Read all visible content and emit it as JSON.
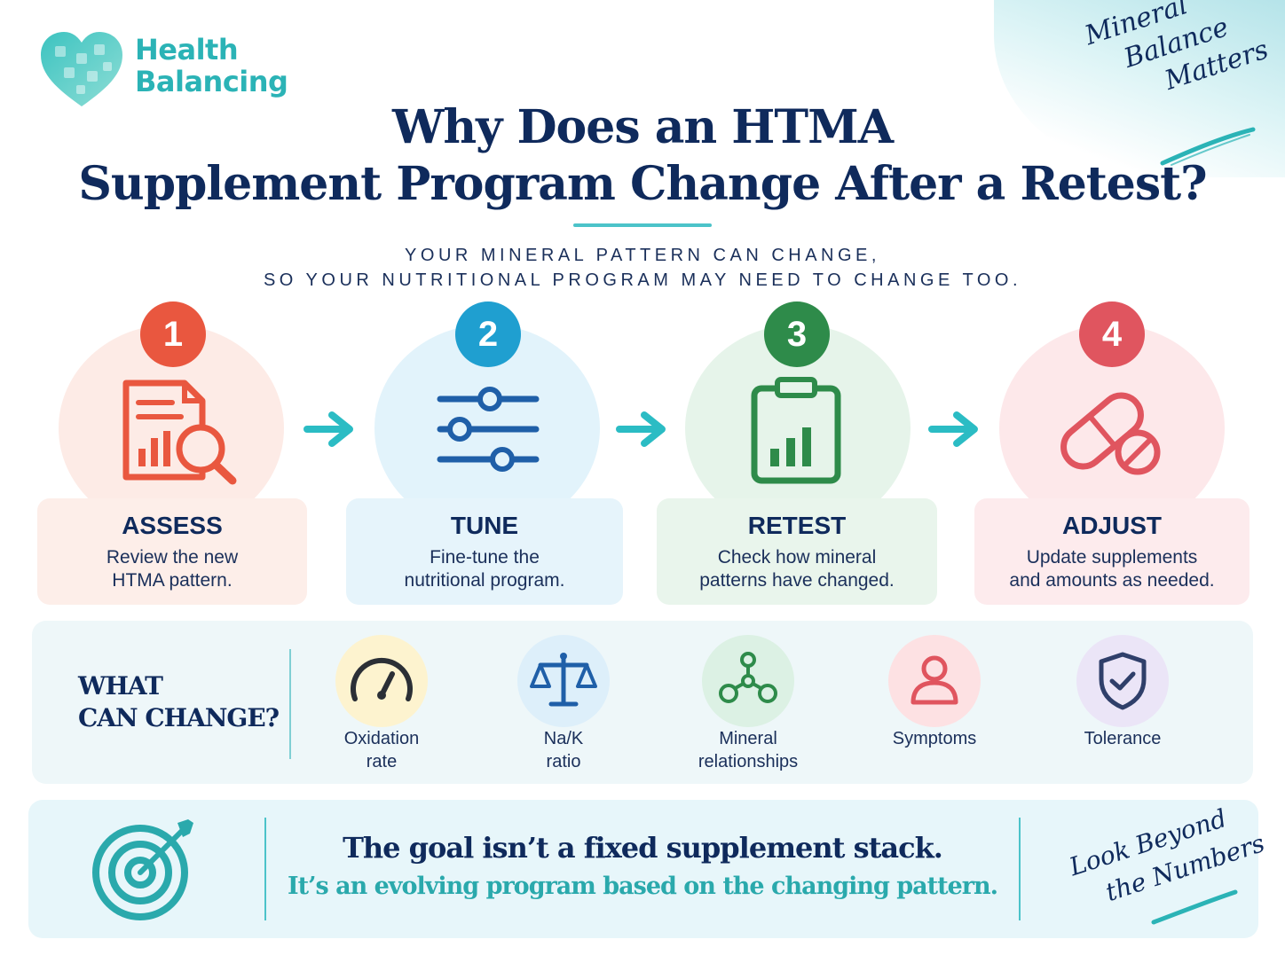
{
  "brand": {
    "name_line1": "Health",
    "name_line2": "Balancing",
    "logo_icon": "puzzle-heart-icon",
    "color": "#2bb3b6"
  },
  "tagline_top": {
    "line1": "Mineral",
    "line2": "Balance",
    "line3": "Matters"
  },
  "title": {
    "line1": "Why Does an HTMA",
    "line2": "Supplement Program Change After a Retest?"
  },
  "subtitle": {
    "line1": "YOUR MINERAL PATTERN CAN CHANGE,",
    "line2": "SO YOUR NUTRITIONAL PROGRAM MAY NEED TO CHANGE TOO."
  },
  "steps": [
    {
      "number": "1",
      "label": "ASSESS",
      "desc_line1": "Review the new",
      "desc_line2": "HTMA pattern.",
      "icon": "report-magnifier-icon",
      "accent": "#e9573f"
    },
    {
      "number": "2",
      "label": "TUNE",
      "desc_line1": "Fine-tune the",
      "desc_line2": "nutritional program.",
      "icon": "sliders-icon",
      "accent": "#1f9fd0"
    },
    {
      "number": "3",
      "label": "RETEST",
      "desc_line1": "Check how mineral",
      "desc_line2": "patterns have changed.",
      "icon": "clipboard-chart-icon",
      "accent": "#2e8b4a"
    },
    {
      "number": "4",
      "label": "ADJUST",
      "desc_line1": "Update supplements",
      "desc_line2": "and amounts as needed.",
      "icon": "pill-capsule-icon",
      "accent": "#e0555f"
    }
  ],
  "what_can_change": {
    "title_line1": "WHAT",
    "title_line2": "CAN CHANGE?",
    "items": [
      {
        "line1": "Oxidation",
        "line2": "rate",
        "icon": "gauge-icon"
      },
      {
        "line1": "Na/K",
        "line2": "ratio",
        "icon": "balance-scale-icon"
      },
      {
        "line1": "Mineral",
        "line2": "relationships",
        "icon": "molecule-icon"
      },
      {
        "line1": "Symptoms",
        "line2": "",
        "icon": "person-icon"
      },
      {
        "line1": "Tolerance",
        "line2": "",
        "icon": "shield-check-icon"
      }
    ]
  },
  "goal": {
    "icon": "target-arrow-icon",
    "line1": "The goal isn’t a fixed supplement stack.",
    "line2": "It’s an evolving program based on the changing pattern."
  },
  "tagline_bottom": {
    "line1": "Look Beyond",
    "line2": "the Numbers"
  }
}
